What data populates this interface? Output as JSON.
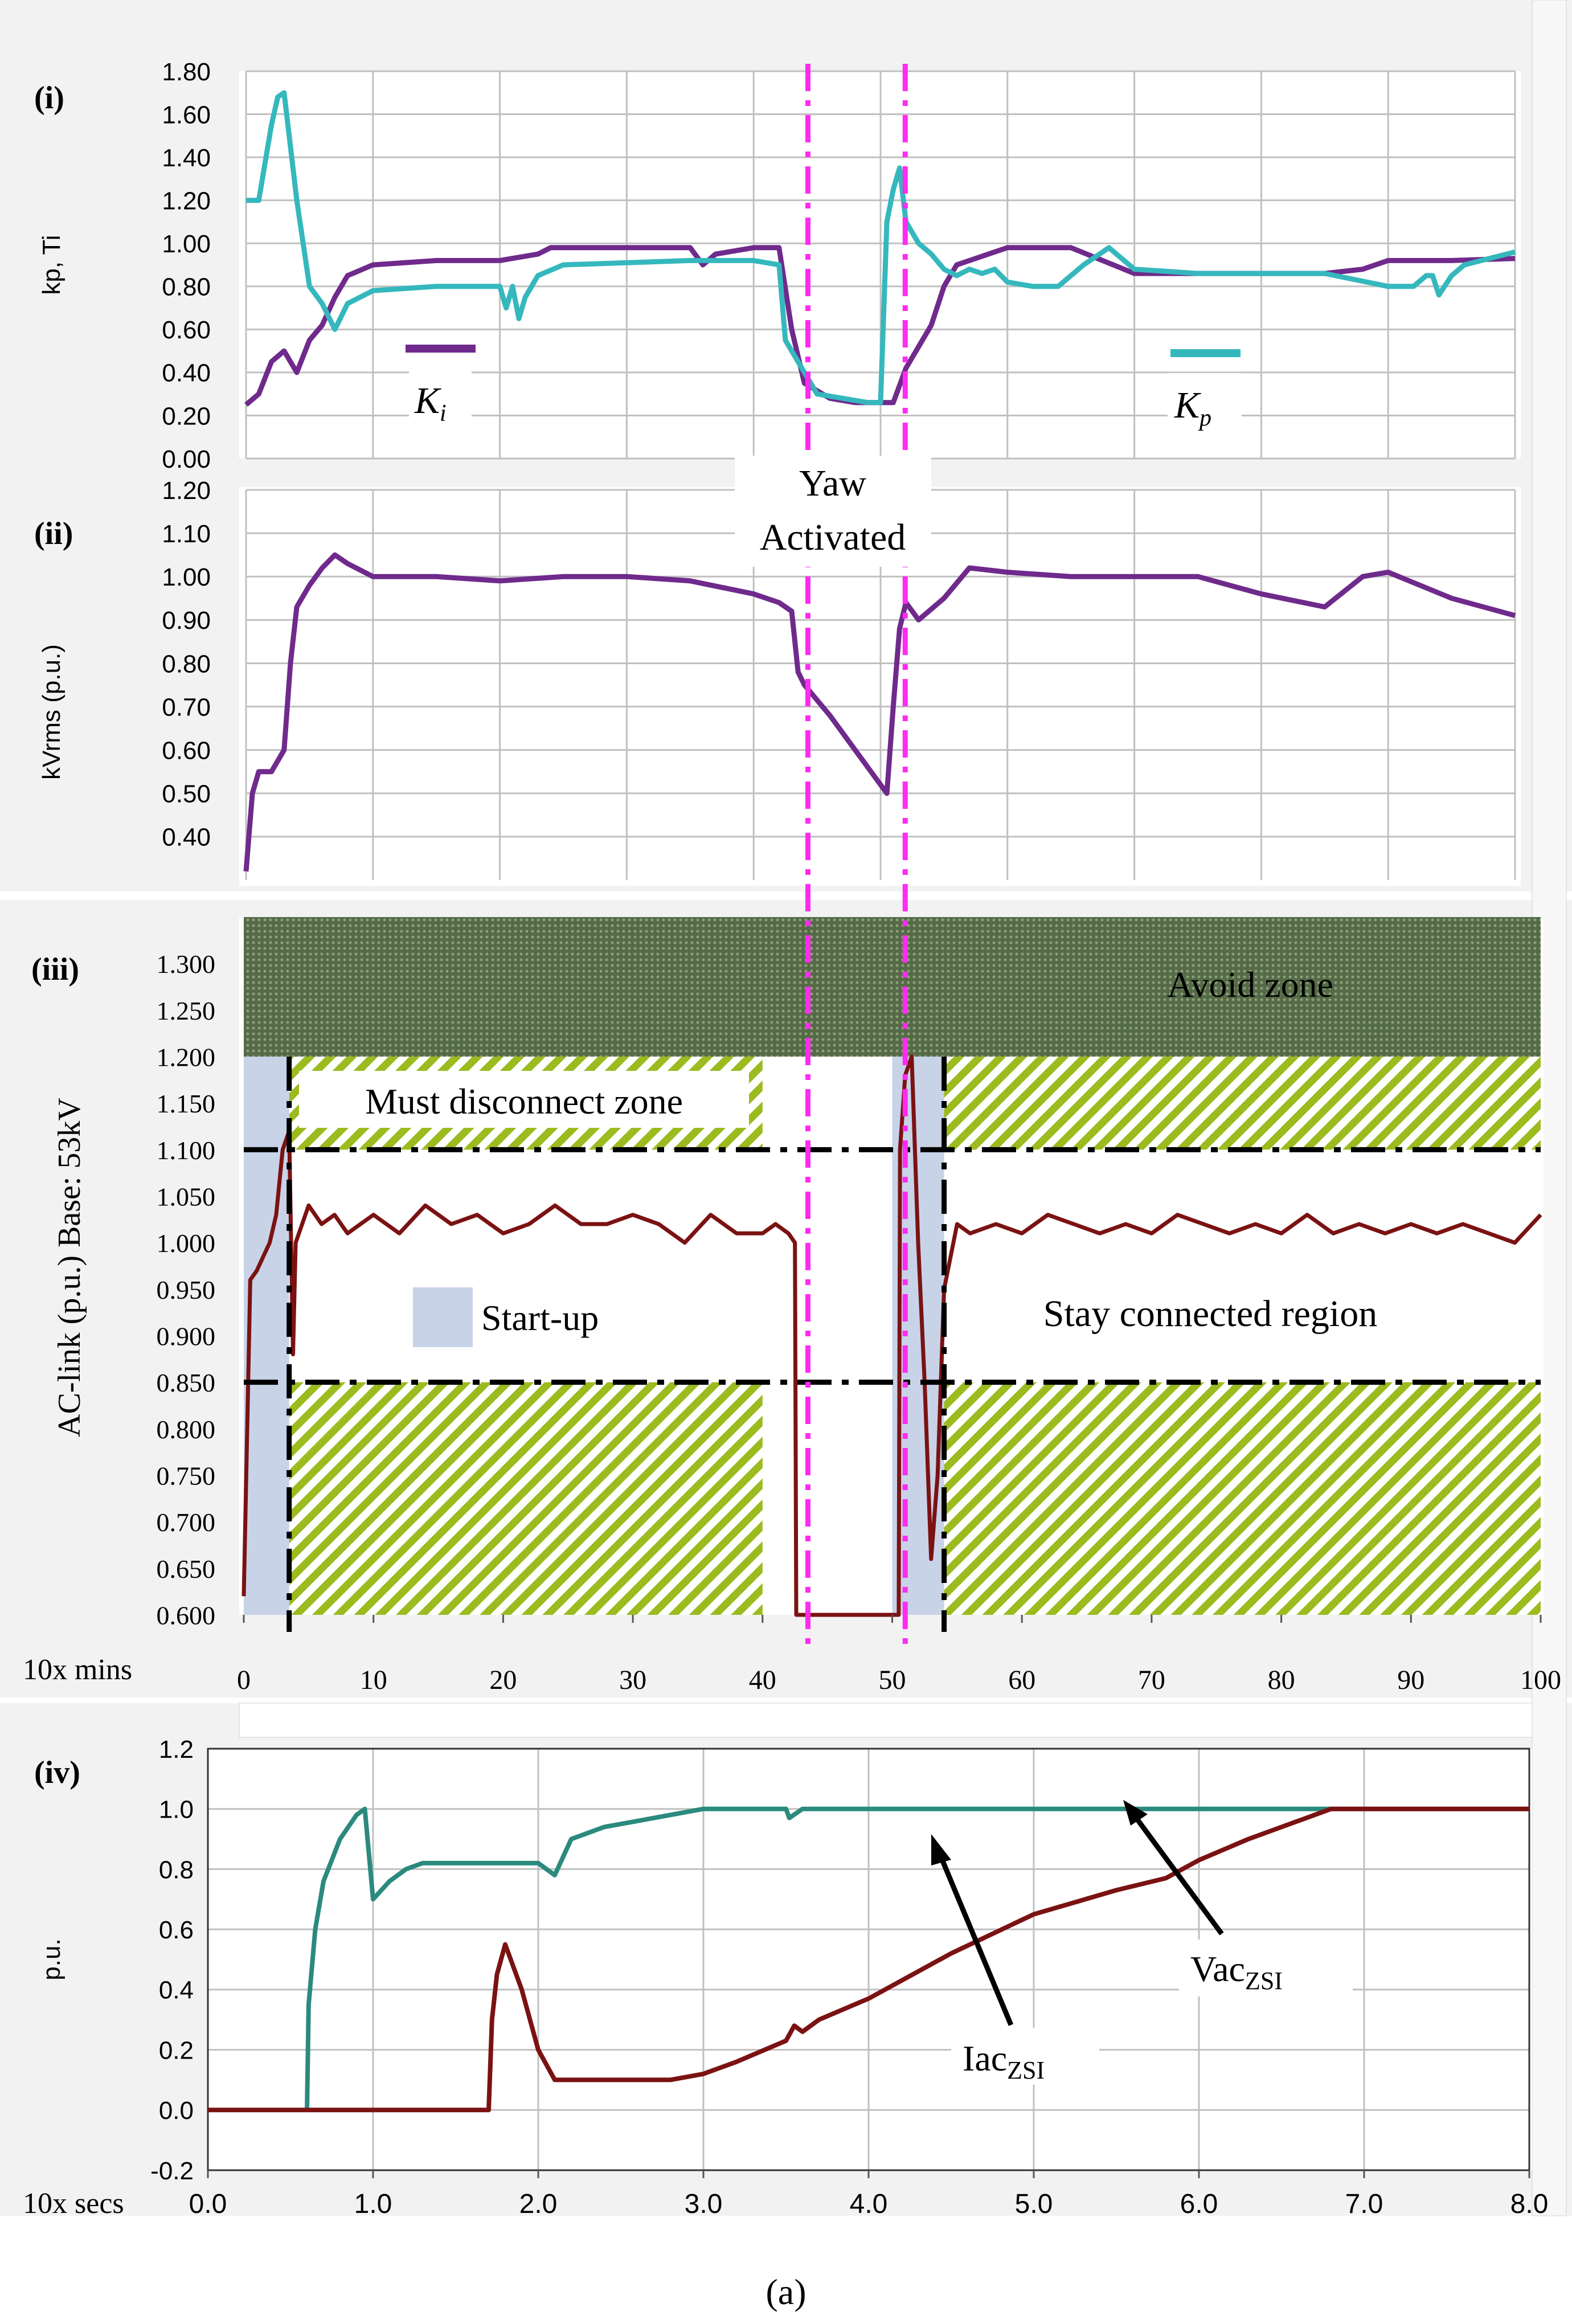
{
  "figure_label": "(a)",
  "annotations": {
    "yaw": [
      "Yaw",
      "Activated"
    ]
  },
  "colors": {
    "purple": "#6f2a8c",
    "teal": "#35b8bd",
    "maroon": "#7b1212",
    "dark_teal": "#2b8a7e",
    "magenta": "#ff2bf0",
    "avoid": "#556b47",
    "hatch": "#9bbb1e",
    "startup": "#c8d3e8",
    "grid": "#c0c0c0"
  },
  "chart_data": [
    {
      "id": "i",
      "panel_label": "(i)",
      "type": "line",
      "ylabel": "kp, Ti",
      "ylim": [
        0,
        1.8
      ],
      "yticks": [
        "0.00",
        "0.20",
        "0.40",
        "0.60",
        "0.80",
        "1.00",
        "1.20",
        "1.40",
        "1.60",
        "1.80"
      ],
      "xlim": [
        0,
        100
      ],
      "legend": [
        {
          "name": "K",
          "sub": "i",
          "color": "#6f2a8c"
        },
        {
          "name": "K",
          "sub": "p",
          "color": "#35b8bd"
        }
      ],
      "markers_x": [
        43.5,
        51
      ],
      "series": [
        {
          "name": "Ki",
          "color": "#6f2a8c",
          "x": [
            0,
            1,
            2,
            3,
            4,
            5,
            6,
            7,
            8,
            10,
            15,
            20,
            23,
            24,
            35,
            36,
            37,
            40,
            42,
            43,
            44,
            46,
            48,
            50,
            51,
            52,
            54,
            55,
            56,
            60,
            65,
            70,
            75,
            80,
            85,
            88,
            90,
            95,
            100
          ],
          "y": [
            0.25,
            0.3,
            0.45,
            0.5,
            0.4,
            0.55,
            0.62,
            0.75,
            0.85,
            0.9,
            0.92,
            0.92,
            0.95,
            0.98,
            0.98,
            0.9,
            0.95,
            0.98,
            0.98,
            0.6,
            0.35,
            0.28,
            0.26,
            0.26,
            0.26,
            0.42,
            0.62,
            0.8,
            0.9,
            0.98,
            0.98,
            0.86,
            0.86,
            0.86,
            0.86,
            0.88,
            0.92,
            0.92,
            0.93
          ]
        },
        {
          "name": "Kp",
          "color": "#35b8bd",
          "x": [
            0,
            1,
            2,
            2.5,
            3,
            4,
            5,
            6,
            7,
            8,
            10,
            15,
            20,
            20.5,
            21,
            21.5,
            22,
            23,
            25,
            35,
            40,
            42,
            42.5,
            43,
            44,
            45,
            47,
            49,
            50,
            50.5,
            51,
            51.5,
            52,
            53,
            54,
            55,
            56,
            57,
            58,
            59,
            60,
            62,
            64,
            65,
            66,
            68,
            70,
            75,
            80,
            85,
            90,
            92,
            93,
            93.5,
            94,
            95,
            96,
            100
          ],
          "y": [
            1.2,
            1.2,
            1.55,
            1.68,
            1.7,
            1.2,
            0.8,
            0.72,
            0.6,
            0.72,
            0.78,
            0.8,
            0.8,
            0.7,
            0.8,
            0.65,
            0.75,
            0.85,
            0.9,
            0.92,
            0.92,
            0.9,
            0.55,
            0.5,
            0.4,
            0.3,
            0.28,
            0.26,
            0.26,
            1.1,
            1.25,
            1.35,
            1.1,
            1.0,
            0.95,
            0.88,
            0.85,
            0.88,
            0.86,
            0.88,
            0.82,
            0.8,
            0.8,
            0.85,
            0.9,
            0.98,
            0.88,
            0.86,
            0.86,
            0.86,
            0.8,
            0.8,
            0.85,
            0.85,
            0.76,
            0.85,
            0.9,
            0.96
          ]
        }
      ]
    },
    {
      "id": "ii",
      "panel_label": "(ii)",
      "type": "line",
      "ylabel": "kVrms (p.u.)",
      "ylim": [
        0.3,
        1.2
      ],
      "yticks": [
        "0.40",
        "0.50",
        "0.60",
        "0.70",
        "0.80",
        "0.90",
        "1.00",
        "1.10",
        "1.20"
      ],
      "xlim": [
        0,
        100
      ],
      "markers_x": [
        43.5,
        51
      ],
      "series": [
        {
          "name": "kVrms",
          "color": "#6f2a8c",
          "x": [
            0,
            0.5,
            1,
            2,
            3,
            3.5,
            4,
            5,
            6,
            7,
            8,
            10,
            15,
            20,
            25,
            30,
            35,
            40,
            42,
            43,
            43.5,
            44,
            46,
            48,
            50,
            50.5,
            51,
            51.5,
            52,
            53,
            55,
            57,
            60,
            65,
            70,
            75,
            80,
            85,
            88,
            90,
            95,
            100
          ],
          "y": [
            0.32,
            0.5,
            0.55,
            0.55,
            0.6,
            0.8,
            0.93,
            0.98,
            1.02,
            1.05,
            1.03,
            1.0,
            1.0,
            0.99,
            1.0,
            1.0,
            0.99,
            0.96,
            0.94,
            0.92,
            0.78,
            0.75,
            0.68,
            0.6,
            0.52,
            0.5,
            0.7,
            0.88,
            0.94,
            0.9,
            0.95,
            1.02,
            1.01,
            1.0,
            1.0,
            1.0,
            0.96,
            0.93,
            1.0,
            1.01,
            0.95,
            0.91
          ]
        }
      ]
    },
    {
      "id": "iii",
      "panel_label": "(iii)",
      "type": "line",
      "ylabel": "AC-link (p.u.) Base: 53kV",
      "ylim": [
        0.6,
        1.35
      ],
      "yticks": [
        "0.600",
        "0.650",
        "0.700",
        "0.750",
        "0.800",
        "0.850",
        "0.900",
        "0.950",
        "1.000",
        "1.050",
        "1.100",
        "1.150",
        "1.200",
        "1.250",
        "1.300"
      ],
      "xlabel": "10x mins",
      "xticks": [
        "0",
        "10",
        "20",
        "30",
        "40",
        "50",
        "60",
        "70",
        "80",
        "90",
        "100"
      ],
      "xlim": [
        0,
        100
      ],
      "thresholds": [
        0.85,
        1.1
      ],
      "markers_x": [
        43.5,
        51
      ],
      "zones": [
        {
          "label": "Avoid zone",
          "type": "avoid",
          "x": [
            0,
            100
          ],
          "y": [
            1.2,
            1.35
          ]
        },
        {
          "label": "Must disconnect zone",
          "type": "hatch",
          "x": [
            3.5,
            40
          ],
          "y": [
            1.1,
            1.2
          ]
        },
        {
          "label": "",
          "type": "hatch",
          "x": [
            54,
            100
          ],
          "y": [
            1.1,
            1.2
          ]
        },
        {
          "label": "",
          "type": "hatch",
          "x": [
            3.5,
            40
          ],
          "y": [
            0.6,
            0.85
          ]
        },
        {
          "label": "",
          "type": "hatch",
          "x": [
            54,
            100
          ],
          "y": [
            0.6,
            0.85
          ]
        },
        {
          "label": "Start-up",
          "type": "startup",
          "x": [
            0,
            3.5
          ],
          "y": [
            0.6,
            1.2
          ]
        },
        {
          "label": "",
          "type": "startup",
          "x": [
            50,
            54
          ],
          "y": [
            0.6,
            1.2
          ]
        }
      ],
      "region_label": "Stay connected region",
      "series": [
        {
          "name": "AC-link",
          "color": "#7b1212",
          "x": [
            0,
            0.5,
            1,
            2,
            2.5,
            3,
            3.5,
            3.8,
            4,
            5,
            6,
            7,
            8,
            9,
            10,
            12,
            14,
            16,
            18,
            20,
            22,
            24,
            26,
            28,
            30,
            32,
            34,
            36,
            38,
            40,
            41,
            42,
            42.5,
            42.6,
            50.5,
            50.6,
            51,
            51.5,
            52,
            52.5,
            53,
            53.5,
            54,
            55,
            56,
            58,
            60,
            62,
            64,
            66,
            68,
            70,
            72,
            74,
            76,
            78,
            80,
            82,
            84,
            86,
            88,
            90,
            92,
            94,
            96,
            98,
            100
          ],
          "y": [
            0.62,
            0.96,
            0.97,
            1.0,
            1.03,
            1.1,
            1.12,
            0.88,
            1.0,
            1.04,
            1.02,
            1.03,
            1.01,
            1.02,
            1.03,
            1.01,
            1.04,
            1.02,
            1.03,
            1.01,
            1.02,
            1.04,
            1.02,
            1.02,
            1.03,
            1.02,
            1.0,
            1.03,
            1.01,
            1.01,
            1.02,
            1.01,
            1.0,
            0.6,
            0.6,
            1.1,
            1.18,
            1.2,
            1.0,
            0.85,
            0.66,
            0.75,
            0.95,
            1.02,
            1.01,
            1.02,
            1.01,
            1.03,
            1.02,
            1.01,
            1.02,
            1.01,
            1.03,
            1.02,
            1.01,
            1.02,
            1.01,
            1.03,
            1.01,
            1.02,
            1.01,
            1.02,
            1.01,
            1.02,
            1.01,
            1.0,
            1.03
          ]
        }
      ]
    },
    {
      "id": "iv",
      "panel_label": "(iv)",
      "type": "line",
      "ylabel": "p.u.",
      "ylim": [
        -0.2,
        1.2
      ],
      "yticks": [
        "-0.2",
        "0.0",
        "0.2",
        "0.4",
        "0.6",
        "0.8",
        "1.0",
        "1.2"
      ],
      "xlabel": "10x secs",
      "xticks": [
        "0.0",
        "1.0",
        "2.0",
        "3.0",
        "4.0",
        "5.0",
        "6.0",
        "7.0",
        "8.0"
      ],
      "xlim": [
        0,
        8
      ],
      "series": [
        {
          "name": "Vac",
          "sub": "ZSI",
          "color": "#2b8a7e",
          "x": [
            0.6,
            0.61,
            0.65,
            0.7,
            0.8,
            0.9,
            0.95,
            1.0,
            1.1,
            1.2,
            1.3,
            1.5,
            1.8,
            2.0,
            2.1,
            2.2,
            2.4,
            2.6,
            2.8,
            3.0,
            3.2,
            3.5,
            3.52,
            3.6,
            4.0,
            5.0,
            6.0,
            7.0,
            8.0
          ],
          "y": [
            0.0,
            0.35,
            0.6,
            0.76,
            0.9,
            0.98,
            1.0,
            0.7,
            0.76,
            0.8,
            0.82,
            0.82,
            0.82,
            0.82,
            0.78,
            0.9,
            0.94,
            0.96,
            0.98,
            1.0,
            1.0,
            1.0,
            0.97,
            1.0,
            1.0,
            1.0,
            1.0,
            1.0,
            1.0
          ]
        },
        {
          "name": "Iac",
          "sub": "ZSI",
          "color": "#7b1212",
          "x": [
            0,
            1.7,
            1.72,
            1.75,
            1.8,
            1.9,
            2.0,
            2.1,
            2.3,
            2.5,
            2.8,
            3.0,
            3.2,
            3.5,
            3.55,
            3.6,
            3.7,
            4.0,
            4.5,
            5.0,
            5.5,
            5.8,
            6.0,
            6.3,
            6.6,
            6.8,
            7.0,
            8.0
          ],
          "y": [
            0.0,
            0.0,
            0.3,
            0.45,
            0.55,
            0.4,
            0.2,
            0.1,
            0.1,
            0.1,
            0.1,
            0.12,
            0.16,
            0.23,
            0.28,
            0.26,
            0.3,
            0.37,
            0.52,
            0.65,
            0.73,
            0.77,
            0.83,
            0.9,
            0.96,
            1.0,
            1.0,
            1.0
          ]
        }
      ],
      "arrows": [
        {
          "label": "Vac",
          "sub": "ZSI"
        },
        {
          "label": "Iac",
          "sub": "ZSI"
        }
      ]
    }
  ]
}
